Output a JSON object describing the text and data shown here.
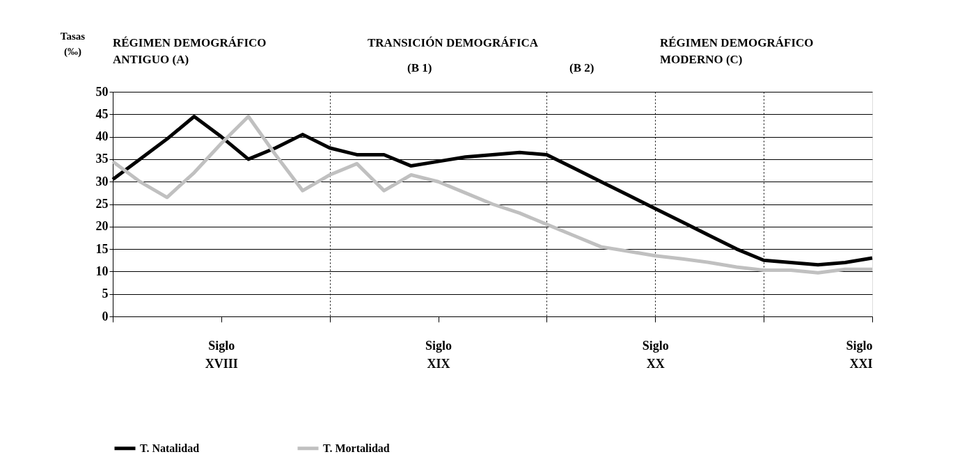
{
  "chart_data": {
    "type": "line",
    "ylabel": "Tasas\n(‰)",
    "annotations": [
      "RÉGIMEN DEMOGRÁFICO\nANTIGUO    (A)",
      "TRANSICIÓN DEMOGRÁFICA",
      "(B 1)",
      "(B 2)",
      "RÉGIMEN DEMOGRÁFICO\nMODERNO (C)"
    ],
    "categories": [
      null,
      null,
      null,
      null,
      "Siglo\nXVIII",
      null,
      null,
      null,
      null,
      null,
      null,
      null,
      "Siglo\nXIX",
      null,
      null,
      null,
      null,
      null,
      null,
      null,
      "Siglo\nXX",
      null,
      null,
      null,
      null,
      null,
      null,
      null,
      "Siglo\nXXI"
    ],
    "ylim": [
      0,
      50
    ],
    "yticks": [
      0,
      5,
      10,
      15,
      20,
      25,
      30,
      35,
      40,
      45,
      50
    ],
    "series": [
      {
        "name": "T. Natalidad",
        "color": "#000000",
        "values": [
          30.5,
          35,
          39.5,
          44.5,
          40,
          35,
          37.5,
          40.5,
          37.5,
          36,
          36,
          33.5,
          34.5,
          35.5,
          36,
          36.5,
          36,
          33,
          30,
          27,
          24,
          21,
          18,
          15,
          12.5,
          12,
          11.5,
          12,
          13
        ]
      },
      {
        "name": "T. Mortalidad",
        "color": "#c0c0c0",
        "values": [
          34.5,
          30,
          26.5,
          32,
          38.5,
          44.5,
          36,
          28,
          31.5,
          34,
          28,
          31.5,
          30,
          27.5,
          25,
          23,
          20.5,
          18,
          15.5,
          14.5,
          13.5,
          12.8,
          12,
          11,
          10.3,
          10.3,
          9.7,
          10.5,
          10.5
        ]
      }
    ],
    "grid": true,
    "legend": "bottom",
    "marker": "none",
    "line_style": "solid"
  }
}
